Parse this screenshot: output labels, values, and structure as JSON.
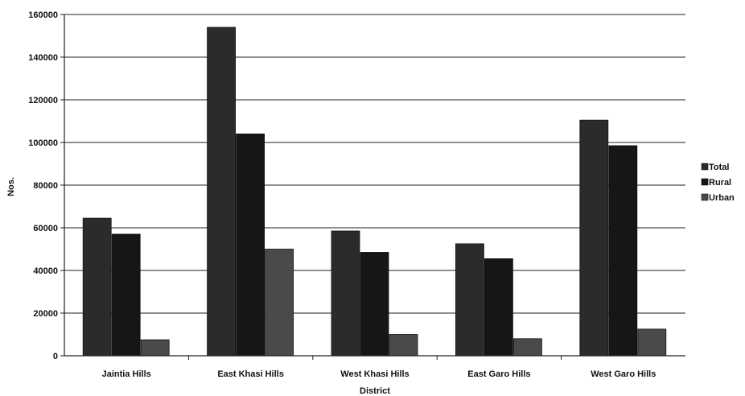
{
  "chart_data": {
    "type": "bar",
    "title": "",
    "xlabel": "District",
    "ylabel": "Nos.",
    "ylim": [
      0,
      160000
    ],
    "yticks": [
      "0",
      "20000",
      "40000",
      "60000",
      "80000",
      "100000",
      "120000",
      "140000",
      "160000"
    ],
    "categories": [
      "Jaintia Hills",
      "East Khasi Hills",
      "West Khasi Hills",
      "East Garo Hills",
      "West Garo Hills"
    ],
    "series": [
      {
        "name": "Total",
        "color": "#2b2b2b",
        "values": [
          64500,
          154000,
          58500,
          52500,
          110500
        ]
      },
      {
        "name": "Rural",
        "color": "#161616",
        "values": [
          57000,
          104000,
          48500,
          45500,
          98500
        ]
      },
      {
        "name": "Urban",
        "color": "#4a4a4a",
        "values": [
          7500,
          50000,
          10000,
          8000,
          12500
        ]
      }
    ],
    "grid": true,
    "legend_position": "right"
  }
}
